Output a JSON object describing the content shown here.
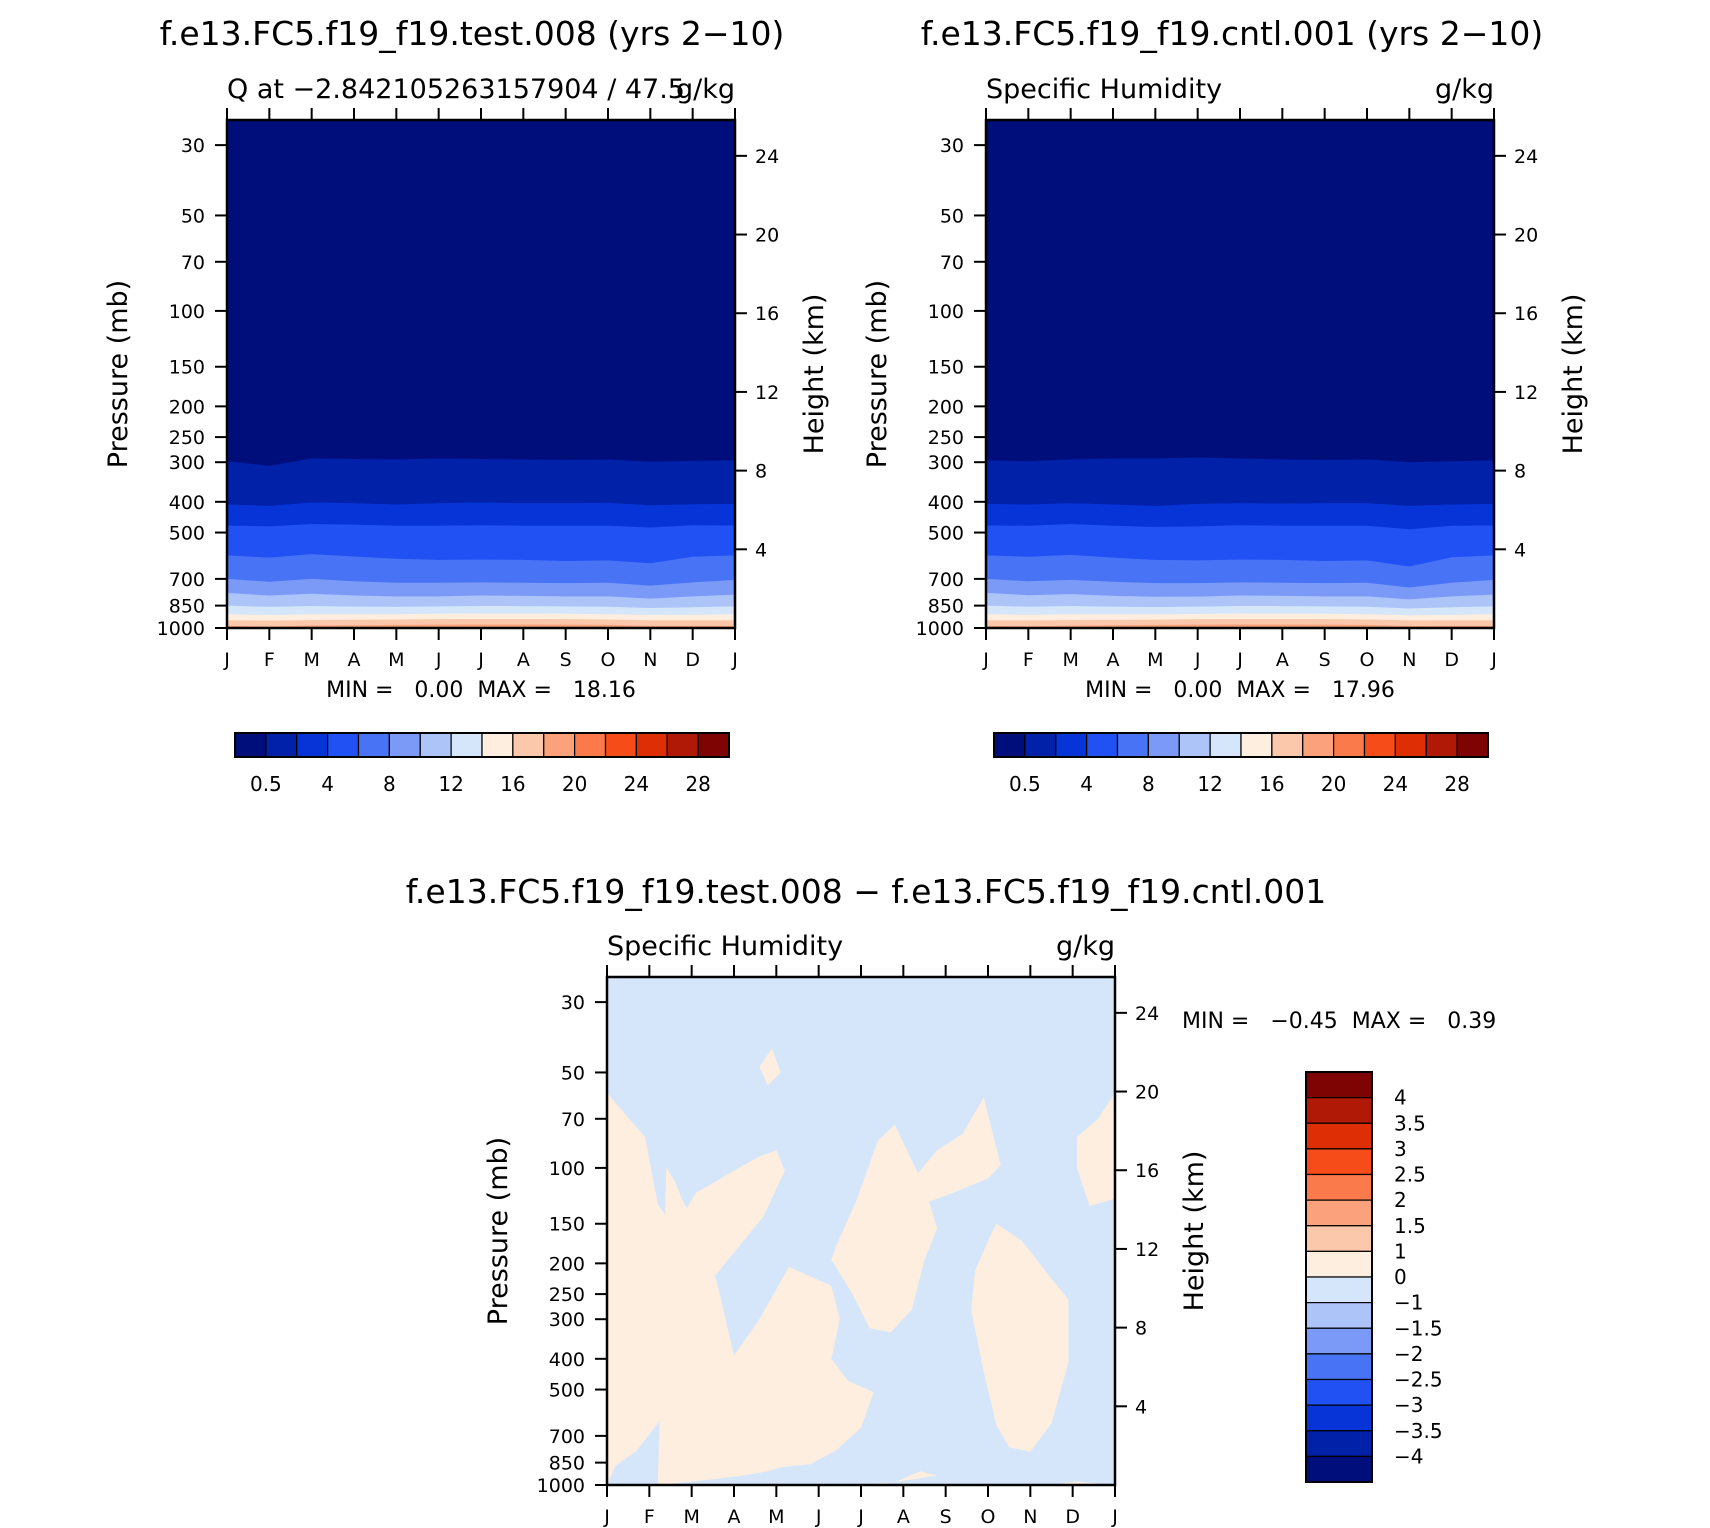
{
  "titles": {
    "left_panel": "f.e13.FC5.f19_f19.test.008 (yrs 2−10)",
    "right_panel": "f.e13.FC5.f19_f19.cntl.001 (yrs 2−10)",
    "bottom_panel": "f.e13.FC5.f19_f19.test.008 − f.e13.FC5.f19_f19.cntl.001"
  },
  "chart_data": [
    {
      "type": "heatmap",
      "panel": "test",
      "left_title": "Q at −2.842105263157904 / 47.5",
      "right_title": "g/kg",
      "ylabel": "Pressure (mb)",
      "ylabel_right": "Height (km)",
      "x_ticks": [
        "J",
        "F",
        "M",
        "A",
        "M",
        "J",
        "J",
        "A",
        "S",
        "O",
        "N",
        "D",
        "J"
      ],
      "y_ticks": [
        30,
        50,
        70,
        100,
        150,
        200,
        250,
        300,
        400,
        500,
        700,
        850,
        1000
      ],
      "y_right_ticks": [
        24,
        20,
        16,
        12,
        8,
        4
      ],
      "ylim": [
        25,
        1000
      ],
      "y_scale": "log",
      "stats": {
        "min_label": "MIN =",
        "min": "0.00",
        "max_label": "MAX =",
        "max": "18.16"
      },
      "colorbar": {
        "orientation": "horizontal",
        "labels": [
          "0.5",
          "4",
          "8",
          "12",
          "16",
          "20",
          "24",
          "28"
        ]
      },
      "contour_levels_g_per_kg": [
        0.5,
        2,
        4,
        6,
        8,
        10,
        12,
        14,
        16,
        18
      ],
      "level_pressure_by_month": {
        "0.5": [
          298,
          308,
          292,
          293,
          294,
          292,
          293,
          294,
          295,
          294,
          299,
          297,
          296
        ],
        "2": [
          408,
          412,
          402,
          404,
          408,
          404,
          402,
          404,
          404,
          403,
          410,
          407,
          406
        ],
        "4": [
          475,
          478,
          470,
          472,
          476,
          476,
          474,
          476,
          476,
          476,
          482,
          474,
          475
        ],
        "6": [
          590,
          600,
          585,
          595,
          605,
          610,
          608,
          610,
          615,
          612,
          625,
          596,
          590
        ],
        "8": [
          700,
          715,
          700,
          712,
          720,
          720,
          718,
          720,
          722,
          720,
          735,
          718,
          705
        ],
        "10": [
          775,
          790,
          780,
          790,
          795,
          795,
          790,
          792,
          795,
          795,
          808,
          795,
          785
        ],
        "12": [
          850,
          858,
          852,
          856,
          858,
          855,
          852,
          853,
          855,
          857,
          865,
          860,
          855
        ],
        "14": [
          905,
          910,
          905,
          905,
          905,
          902,
          900,
          900,
          902,
          905,
          910,
          908,
          905
        ],
        "16": [
          945,
          948,
          944,
          942,
          940,
          938,
          937,
          937,
          938,
          940,
          945,
          945,
          945
        ],
        "18": [
          985,
          990,
          982,
          980,
          978,
          976,
          975,
          975,
          976,
          978,
          985,
          985,
          985
        ]
      }
    },
    {
      "type": "heatmap",
      "panel": "control",
      "left_title": "Specific Humidity",
      "right_title": "g/kg",
      "ylabel": "Pressure (mb)",
      "ylabel_right": "Height (km)",
      "x_ticks": [
        "J",
        "F",
        "M",
        "A",
        "M",
        "J",
        "J",
        "A",
        "S",
        "O",
        "N",
        "D",
        "J"
      ],
      "y_ticks": [
        30,
        50,
        70,
        100,
        150,
        200,
        250,
        300,
        400,
        500,
        700,
        850,
        1000
      ],
      "y_right_ticks": [
        24,
        20,
        16,
        12,
        8,
        4
      ],
      "ylim": [
        25,
        1000
      ],
      "y_scale": "log",
      "stats": {
        "min_label": "MIN =",
        "min": "0.00",
        "max_label": "MAX =",
        "max": "17.96"
      },
      "colorbar": {
        "orientation": "horizontal",
        "labels": [
          "0.5",
          "4",
          "8",
          "12",
          "16",
          "20",
          "24",
          "28"
        ]
      },
      "contour_levels_g_per_kg": [
        0.5,
        2,
        4,
        6,
        8,
        10,
        12,
        14,
        16,
        18
      ],
      "level_pressure_by_month": {
        "0.5": [
          296,
          298,
          294,
          292,
          292,
          290,
          292,
          294,
          295,
          294,
          300,
          298,
          296
        ],
        "2": [
          406,
          408,
          404,
          408,
          412,
          406,
          404,
          405,
          404,
          404,
          412,
          408,
          406
        ],
        "4": [
          475,
          476,
          470,
          476,
          480,
          478,
          474,
          476,
          476,
          476,
          488,
          476,
          475
        ],
        "6": [
          590,
          596,
          588,
          600,
          610,
          612,
          608,
          610,
          615,
          612,
          640,
          598,
          590
        ],
        "8": [
          700,
          712,
          705,
          715,
          722,
          722,
          718,
          720,
          722,
          720,
          745,
          720,
          705
        ],
        "10": [
          775,
          788,
          782,
          792,
          797,
          796,
          790,
          792,
          795,
          795,
          812,
          795,
          785
        ],
        "12": [
          850,
          857,
          852,
          857,
          859,
          856,
          852,
          853,
          855,
          857,
          868,
          860,
          855
        ],
        "14": [
          905,
          908,
          905,
          906,
          906,
          903,
          900,
          900,
          902,
          905,
          912,
          908,
          905
        ],
        "16": [
          945,
          946,
          944,
          943,
          941,
          938,
          937,
          937,
          938,
          940,
          946,
          945,
          945
        ],
        "18": [
          985,
          988,
          983,
          980,
          978,
          976,
          975,
          975,
          976,
          978,
          986,
          985,
          985
        ]
      }
    },
    {
      "type": "heatmap",
      "panel": "difference",
      "left_title": "Specific Humidity",
      "right_title": "g/kg",
      "ylabel": "Pressure (mb)",
      "ylabel_right": "Height (km)",
      "x_ticks": [
        "J",
        "F",
        "M",
        "A",
        "M",
        "J",
        "J",
        "A",
        "S",
        "O",
        "N",
        "D",
        "J"
      ],
      "y_ticks": [
        30,
        50,
        70,
        100,
        150,
        200,
        250,
        300,
        400,
        500,
        700,
        850,
        1000
      ],
      "y_right_ticks": [
        24,
        20,
        16,
        12,
        8,
        4
      ],
      "ylim": [
        25,
        1000
      ],
      "y_scale": "log",
      "stats": {
        "min_label": "MIN =",
        "min": "−0.45",
        "max_label": "MAX =",
        "max": "0.39"
      },
      "colorbar": {
        "orientation": "vertical",
        "labels": [
          "4",
          "3.5",
          "3",
          "2.5",
          "2",
          "1.5",
          "1",
          "0",
          "−1",
          "−1.5",
          "−2",
          "−2.5",
          "−3",
          "−3.5",
          "−4"
        ]
      },
      "positive_regions": [
        {
          "month": [
            0.0,
            0.9,
            1.2,
            1.6,
            2.1,
            3.0,
            3.6,
            4.0,
            4.2,
            3.7,
            3.0,
            2.3,
            1.8,
            1.2,
            0.7,
            0.2,
            0.0
          ],
          "pressure": [
            58,
            80,
            130,
            155,
            120,
            102,
            92,
            88,
            102,
            142,
            185,
            240,
            390,
            640,
            780,
            870,
            1000
          ]
        },
        {
          "month": [
            1.2,
            2.5,
            3.2,
            3.8,
            4.1,
            4.8,
            5.4,
            6.0,
            6.3,
            5.7,
            5.3,
            5.5,
            5.3,
            4.8,
            4.3,
            3.6,
            3.0,
            2.6,
            2.2,
            1.8,
            1.6,
            1.4
          ],
          "pressure": [
            1000,
            960,
            935,
            905,
            880,
            860,
            780,
            660,
            510,
            470,
            400,
            300,
            235,
            220,
            205,
            300,
            390,
            230,
            160,
            128,
            110,
            100
          ]
        },
        {
          "month": [
            5.4,
            5.9,
            6.4,
            6.8,
            7.5,
            7.8,
            7.5,
            7.2,
            6.7,
            6.2,
            5.8,
            5.3
          ],
          "pressure": [
            178,
            126,
            82,
            73,
            115,
            155,
            195,
            280,
            330,
            320,
            250,
            195
          ]
        },
        {
          "month": [
            7.0,
            7.8,
            8.4,
            8.9,
            9.3,
            9.0,
            8.3,
            7.6
          ],
          "pressure": [
            118,
            88,
            78,
            60,
            98,
            108,
            118,
            128
          ]
        },
        {
          "month": [
            9.2,
            9.8,
            10.4,
            10.9,
            10.9,
            10.5,
            10.0,
            9.5,
            9.2,
            8.9,
            8.6,
            8.7,
            9.0
          ],
          "pressure": [
            150,
            170,
            215,
            260,
            410,
            640,
            785,
            760,
            650,
            440,
            280,
            210,
            170
          ]
        },
        {
          "month": [
            11.1,
            11.6,
            12.0,
            12.0,
            11.4,
            11.1
          ],
          "pressure": [
            80,
            70,
            58,
            125,
            132,
            100
          ]
        },
        {
          "month": [
            5.9,
            6.8,
            7.4,
            7.8,
            6.5,
            5.9
          ],
          "pressure": [
            1000,
            980,
            905,
            935,
            992,
            1000
          ]
        },
        {
          "month": [
            3.6,
            3.9,
            4.1,
            3.8
          ],
          "pressure": [
            48,
            42,
            50,
            55
          ]
        },
        {
          "month": [
            10.6,
            11.1,
            11.6,
            11.2
          ],
          "pressure": [
            995,
            975,
            990,
            1000
          ]
        }
      ]
    }
  ]
}
